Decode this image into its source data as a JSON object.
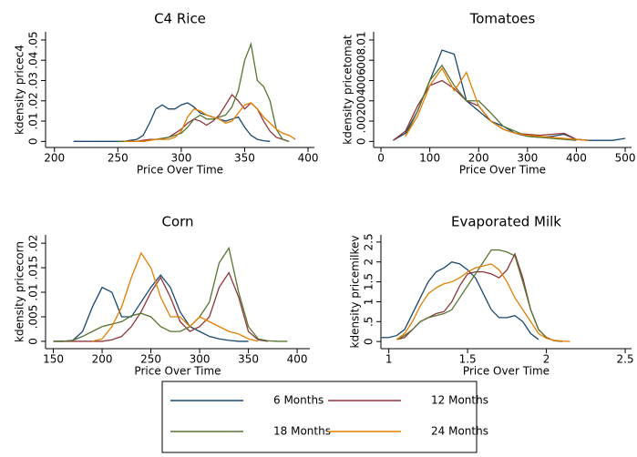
{
  "chart_data": [
    {
      "type": "line",
      "title": "C4 Rice",
      "xlabel": "Price Over Time",
      "ylabel": "kdensity pricec4",
      "x": [
        215,
        220,
        225,
        230,
        235,
        240,
        245,
        250,
        255,
        260,
        265,
        270,
        275,
        280,
        285,
        290,
        295,
        300,
        305,
        310,
        315,
        320,
        325,
        330,
        335,
        340,
        345,
        350,
        355,
        360,
        365,
        370,
        375,
        380,
        385,
        390
      ],
      "series": [
        {
          "name": "6 Months",
          "color": "#1a476f",
          "values": [
            0,
            0,
            0,
            0,
            0,
            0,
            0,
            0,
            0,
            0.0005,
            0.001,
            0.003,
            0.009,
            0.016,
            0.018,
            0.016,
            0.016,
            0.018,
            0.019,
            0.017,
            0.014,
            0.013,
            0.012,
            0.011,
            0.01,
            0.011,
            0.012,
            0.007,
            0.003,
            0.001,
            0.0003,
            0,
            null,
            null,
            null,
            null
          ]
        },
        {
          "name": "12 Months",
          "color": "#90353b",
          "values": [
            null,
            null,
            null,
            null,
            null,
            null,
            null,
            0,
            0,
            0,
            0,
            0.0005,
            0.001,
            0.001,
            0.0015,
            0.002,
            0.004,
            0.006,
            0.009,
            0.011,
            0.01,
            0.008,
            0.01,
            0.013,
            0.018,
            0.023,
            0.02,
            0.016,
            0.019,
            0.016,
            0.01,
            0.005,
            0.002,
            0.001,
            0,
            null
          ]
        },
        {
          "name": "18 Months",
          "color": "#55752f",
          "values": [
            null,
            null,
            null,
            null,
            null,
            null,
            null,
            0,
            0,
            0,
            0,
            0,
            0.0005,
            0.001,
            0.0015,
            0.002,
            0.003,
            0.004,
            0.007,
            0.011,
            0.013,
            0.011,
            0.011,
            0.012,
            0.013,
            0.017,
            0.025,
            0.04,
            0.048,
            0.03,
            0.027,
            0.02,
            0.006,
            0.001,
            0,
            null
          ]
        },
        {
          "name": "24 Months",
          "color": "#e37e00",
          "values": [
            null,
            null,
            null,
            null,
            null,
            null,
            null,
            null,
            0,
            0,
            0,
            0,
            0.0005,
            0.001,
            0.001,
            0.001,
            0.002,
            0.005,
            0.012,
            0.016,
            0.015,
            0.013,
            0.012,
            0.011,
            0.009,
            0.01,
            0.014,
            0.018,
            0.019,
            0.016,
            0.012,
            0.009,
            0.006,
            0.004,
            0.003,
            0.001
          ]
        }
      ],
      "xlim": [
        193,
        405
      ],
      "xticks": [
        200,
        250,
        300,
        350,
        400
      ],
      "ylim": [
        -0.003,
        0.054
      ],
      "yticks": [
        0,
        {
          "value": 0.01,
          "label": ".01"
        },
        {
          "value": 0.02,
          "label": ".02"
        },
        {
          "value": 0.03,
          "label": ".03"
        },
        {
          "value": 0.04,
          "label": ".04"
        },
        {
          "value": 0.05,
          "label": ".05"
        }
      ],
      "grid": false
    },
    {
      "type": "line",
      "title": "Tomatoes",
      "xlabel": "Price Over Time",
      "ylabel": "kdensity pricetomat",
      "x": [
        25,
        50,
        75,
        100,
        125,
        150,
        175,
        200,
        225,
        250,
        275,
        300,
        325,
        350,
        375,
        400,
        425,
        450,
        475,
        500
      ],
      "series": [
        {
          "name": "6 Months",
          "color": "#1a476f",
          "values": [
            0.0001,
            0.0008,
            0.003,
            0.006,
            0.009,
            0.0086,
            0.004,
            0.003,
            0.002,
            0.0015,
            0.0008,
            0.0005,
            0.0004,
            0.0005,
            0.0007,
            0.0002,
            0.0001,
            0.0001,
            0.0001,
            0.0003
          ]
        },
        {
          "name": "12 Months",
          "color": "#90353b",
          "values": [
            0.0001,
            0.001,
            0.0035,
            0.0055,
            0.006,
            0.0052,
            0.004,
            0.0035,
            0.002,
            0.0012,
            0.0008,
            0.0007,
            0.0006,
            0.0007,
            0.0008,
            0.0002,
            0.0001,
            null,
            null,
            null
          ]
        },
        {
          "name": "18 Months",
          "color": "#55752f",
          "values": [
            null,
            0.0005,
            0.003,
            0.006,
            0.0075,
            0.0055,
            0.004,
            0.004,
            0.0028,
            0.0015,
            0.001,
            0.0005,
            0.0004,
            0.0003,
            0.0002,
            0.0001,
            null,
            null,
            null,
            null
          ]
        },
        {
          "name": "24 Months",
          "color": "#e37e00",
          "values": [
            null,
            0.0005,
            0.0025,
            0.0055,
            0.0072,
            0.005,
            0.0068,
            0.0035,
            0.002,
            0.0012,
            0.0008,
            0.0006,
            0.0005,
            0.0004,
            0.0003,
            0.0002,
            0.0001,
            null,
            null,
            null
          ]
        }
      ],
      "xlim": [
        -15,
        513
      ],
      "xticks": [
        0,
        100,
        200,
        300,
        400,
        500
      ],
      "ylim": [
        -0.0006,
        0.0108
      ],
      "yticks": [
        0,
        {
          "value": 0.002,
          "label": ".002"
        },
        {
          "value": 0.004,
          "label": ".004"
        },
        {
          "value": 0.006,
          "label": ".006"
        },
        {
          "value": 0.008,
          "label": ".008"
        },
        {
          "value": 0.01,
          "label": ".01"
        }
      ],
      "grid": false
    },
    {
      "type": "line",
      "title": "Corn",
      "xlabel": "Price Over Time",
      "ylabel": "kdensity pricecorn",
      "x": [
        150,
        160,
        170,
        180,
        190,
        200,
        210,
        220,
        230,
        240,
        250,
        260,
        270,
        280,
        290,
        300,
        310,
        320,
        330,
        340,
        350,
        360,
        370,
        380,
        390
      ],
      "series": [
        {
          "name": "6 Months",
          "color": "#1a476f",
          "values": [
            0,
            0,
            0.0002,
            0.002,
            0.007,
            0.011,
            0.01,
            0.005,
            0.005,
            0.008,
            0.011,
            0.0135,
            0.011,
            0.006,
            0.003,
            0.002,
            0.001,
            0.0005,
            0.0002,
            0,
            0,
            null,
            null,
            null,
            null
          ]
        },
        {
          "name": "12 Months",
          "color": "#90353b",
          "values": [
            0,
            0,
            0,
            0,
            0,
            0,
            0.0003,
            0.001,
            0.003,
            0.006,
            0.01,
            0.013,
            0.009,
            0.004,
            0.002,
            0.003,
            0.005,
            0.011,
            0.014,
            0.009,
            0.002,
            0.0003,
            0,
            null,
            null
          ]
        },
        {
          "name": "18 Months",
          "color": "#55752f",
          "values": [
            0,
            0,
            0.0002,
            0.001,
            0.002,
            0.003,
            0.0035,
            0.004,
            0.0052,
            0.0057,
            0.005,
            0.003,
            0.002,
            0.002,
            0.003,
            0.005,
            0.008,
            0.016,
            0.019,
            0.01,
            0.003,
            0.0005,
            0.0001,
            0,
            0
          ]
        },
        {
          "name": "24 Months",
          "color": "#e37e00",
          "values": [
            null,
            null,
            null,
            null,
            0,
            0.0005,
            0.003,
            0.007,
            0.013,
            0.018,
            0.015,
            0.009,
            0.005,
            0.005,
            0.003,
            0.005,
            0.004,
            0.003,
            0.002,
            0.0015,
            0.0005,
            0,
            null,
            null,
            null
          ]
        }
      ],
      "xlim": [
        142,
        413
      ],
      "xticks": [
        150,
        200,
        250,
        300,
        350,
        400
      ],
      "ylim": [
        -0.0015,
        0.0217
      ],
      "yticks": [
        0,
        {
          "value": 0.005,
          "label": ".005"
        },
        {
          "value": 0.01,
          "label": ".01"
        },
        {
          "value": 0.015,
          "label": ".015"
        },
        {
          "value": 0.02,
          "label": ".02"
        }
      ],
      "grid": false
    },
    {
      "type": "line",
      "title": "Evaporated Milk",
      "xlabel": "Price Over Time",
      "ylabel": "kdensity pricemilkev",
      "x": [
        0.95,
        1.0,
        1.05,
        1.1,
        1.15,
        1.2,
        1.25,
        1.3,
        1.35,
        1.4,
        1.45,
        1.5,
        1.55,
        1.6,
        1.65,
        1.7,
        1.75,
        1.8,
        1.85,
        1.9,
        1.95,
        2.0,
        2.05,
        2.1,
        2.15
      ],
      "series": [
        {
          "name": "6 Months",
          "color": "#1a476f",
          "values": [
            0.1,
            0.1,
            0.15,
            0.3,
            0.7,
            1.1,
            1.5,
            1.75,
            1.85,
            2.0,
            1.95,
            1.8,
            1.6,
            1.2,
            0.8,
            0.6,
            0.6,
            0.65,
            0.5,
            0.2,
            0.05,
            null,
            null,
            null,
            null
          ]
        },
        {
          "name": "12 Months",
          "color": "#90353b",
          "values": [
            null,
            null,
            0.05,
            0.1,
            0.3,
            0.5,
            0.6,
            0.7,
            0.75,
            1.0,
            1.4,
            1.7,
            1.75,
            1.75,
            1.7,
            1.6,
            1.8,
            2.2,
            1.6,
            0.8,
            0.3,
            0.1,
            0.02,
            0,
            null
          ]
        },
        {
          "name": "18 Months",
          "color": "#55752f",
          "values": [
            null,
            null,
            0.05,
            0.15,
            0.3,
            0.5,
            0.6,
            0.65,
            0.7,
            0.8,
            1.1,
            1.4,
            1.7,
            2.0,
            2.3,
            2.3,
            2.25,
            2.15,
            1.5,
            0.8,
            0.3,
            0.1,
            0.02,
            0,
            null
          ]
        },
        {
          "name": "24 Months",
          "color": "#e37e00",
          "values": [
            null,
            null,
            0.05,
            0.2,
            0.5,
            0.9,
            1.2,
            1.35,
            1.45,
            1.5,
            1.6,
            1.75,
            1.85,
            1.9,
            1.95,
            1.8,
            1.5,
            1.1,
            0.8,
            0.5,
            0.2,
            0.08,
            0.03,
            0.01,
            0
          ]
        }
      ],
      "xlim": [
        0.95,
        2.54
      ],
      "xticks": [
        1,
        1.5,
        2,
        2.5
      ],
      "ylim": [
        -0.18,
        2.68
      ],
      "yticks": [
        0,
        {
          "value": 0.5,
          "label": ".5"
        },
        1,
        1.5,
        2,
        2.5
      ],
      "grid": false
    }
  ]
}
